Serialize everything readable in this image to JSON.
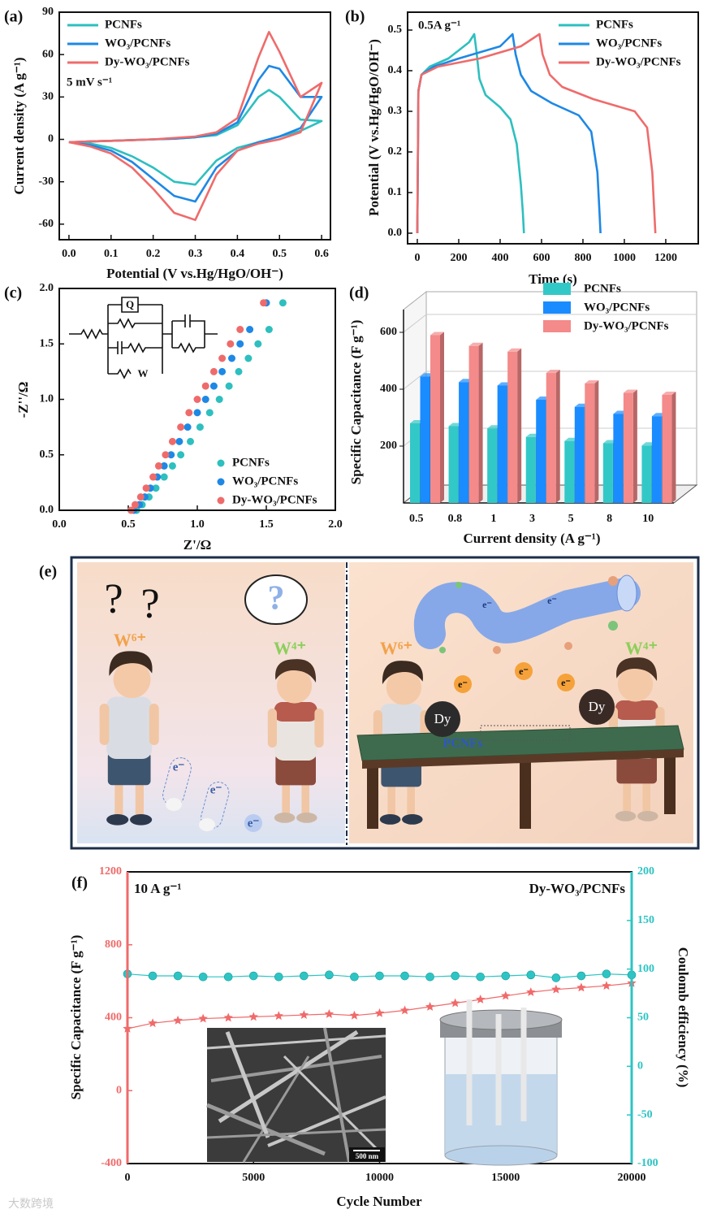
{
  "chart_data": [
    {
      "type": "line",
      "panel": "(a)",
      "xlabel": "Potential (V vs.Hg/HgO/OH⁻)",
      "ylabel": "Current density (A g⁻¹)",
      "annotation": "5 mV s⁻¹",
      "legend": "upper left",
      "x": [
        0,
        0.05,
        0.1,
        0.15,
        0.2,
        0.25,
        0.3,
        0.35,
        0.4,
        0.45,
        0.475,
        0.5,
        0.55,
        0.6,
        0.55,
        0.5,
        0.45,
        0.4,
        0.35,
        0.3,
        0.25,
        0.2,
        0.15,
        0.1,
        0.05,
        0
      ],
      "xlim": [
        -0.023,
        0.621
      ],
      "xticks": [
        {
          "value": 0,
          "label": "0.0"
        },
        0.1,
        0.2,
        0.3,
        0.4,
        0.5,
        0.6
      ],
      "ylim": [
        -71,
        90
      ],
      "yticks": [
        -60,
        -30,
        0,
        30,
        60,
        90
      ],
      "series": [
        {
          "name": "PCNFs",
          "color": "#2ebfbf",
          "values": [
            -2,
            -1.5,
            -1,
            -0.5,
            0,
            0.5,
            1.5,
            3,
            10,
            30,
            35,
            30,
            14,
            13,
            6,
            2,
            -2,
            -6,
            -15,
            -32,
            -30,
            -20,
            -12,
            -6,
            -3,
            -2
          ]
        },
        {
          "name": "WO₃/PCNFs",
          "color": "#1e88e5",
          "values": [
            -2,
            -1.5,
            -1,
            -0.5,
            0,
            0.5,
            1.5,
            4,
            12,
            42,
            52,
            50,
            30,
            30,
            8,
            2,
            -2,
            -8,
            -20,
            -44,
            -40,
            -28,
            -16,
            -8,
            -4,
            -2
          ]
        },
        {
          "name": "Dy-WO₃/PCNFs",
          "color": "#ef6b6b",
          "values": [
            -2,
            -1.5,
            -1,
            -0.5,
            0,
            1,
            2,
            5,
            15,
            58,
            76,
            62,
            30,
            40,
            5,
            0,
            -3,
            -8,
            -25,
            -57,
            -52,
            -35,
            -20,
            -10,
            -5,
            -2
          ]
        }
      ]
    },
    {
      "type": "line",
      "panel": "(b)",
      "xlabel": "Time (s)",
      "ylabel": "Potential (V vs.Hg/HgO/OH⁻)",
      "annotation": "0.5A g⁻¹",
      "legend": "upper right",
      "xlim": [
        -47,
        1357
      ],
      "xticks": [
        0,
        200,
        400,
        600,
        800,
        1000,
        1200
      ],
      "ylim": [
        -0.026,
        0.544
      ],
      "yticks": [
        {
          "value": 0,
          "label": "0.0"
        },
        0.1,
        0.2,
        0.3,
        0.4,
        0.5
      ],
      "series": [
        {
          "name": "PCNFs",
          "color": "#2ebfbf",
          "x": [
            0,
            5,
            20,
            60,
            150,
            250,
            275,
            285,
            300,
            330,
            400,
            450,
            480,
            500,
            510,
            515
          ],
          "values": [
            0,
            0.35,
            0.39,
            0.41,
            0.43,
            0.47,
            0.49,
            0.45,
            0.38,
            0.34,
            0.31,
            0.28,
            0.22,
            0.12,
            0.05,
            0
          ]
        },
        {
          "name": "WO₃/PCNFs",
          "color": "#1e88e5",
          "x": [
            0,
            5,
            20,
            80,
            200,
            400,
            460,
            475,
            500,
            550,
            650,
            780,
            840,
            870,
            880,
            885
          ],
          "values": [
            0,
            0.35,
            0.39,
            0.41,
            0.43,
            0.46,
            0.49,
            0.44,
            0.39,
            0.35,
            0.32,
            0.29,
            0.25,
            0.15,
            0.05,
            0
          ]
        },
        {
          "name": "Dy-WO₃/PCNFs",
          "color": "#ef6b6b",
          "x": [
            0,
            5,
            20,
            100,
            300,
            500,
            590,
            605,
            640,
            700,
            850,
            1050,
            1110,
            1135,
            1145,
            1150
          ],
          "values": [
            0,
            0.35,
            0.39,
            0.41,
            0.43,
            0.46,
            0.49,
            0.44,
            0.39,
            0.36,
            0.33,
            0.3,
            0.26,
            0.15,
            0.05,
            0
          ]
        }
      ]
    },
    {
      "type": "scatter",
      "panel": "(c)",
      "xlabel": "Z'/Ω",
      "ylabel": "-Z''/Ω",
      "legend": "lower right",
      "inset_labels": [
        "Q",
        "W"
      ],
      "xlim": [
        0,
        2
      ],
      "xticks": [
        {
          "value": 0,
          "label": "0.0"
        },
        0.5,
        {
          "value": 1,
          "label": "1.0"
        },
        1.5,
        {
          "value": 2,
          "label": "2.0"
        }
      ],
      "ylim": [
        0,
        2
      ],
      "yticks": [
        {
          "value": 0,
          "label": "0.0"
        },
        0.5,
        {
          "value": 1,
          "label": "1.0"
        },
        1.5,
        {
          "value": 2,
          "label": "2.0"
        }
      ],
      "series": [
        {
          "name": "PCNFs",
          "color": "#2ebfbf",
          "x": [
            0.56,
            0.6,
            0.65,
            0.7,
            0.76,
            0.82,
            0.88,
            0.95,
            1.02,
            1.09,
            1.16,
            1.23,
            1.3,
            1.37,
            1.44,
            1.52,
            1.62
          ],
          "values": [
            0,
            0.05,
            0.12,
            0.2,
            0.3,
            0.4,
            0.5,
            0.62,
            0.75,
            0.88,
            1.0,
            1.12,
            1.25,
            1.37,
            1.5,
            1.63,
            1.87
          ]
        },
        {
          "name": "WO₃/PCNFs",
          "color": "#1e88e5",
          "x": [
            0.54,
            0.58,
            0.62,
            0.66,
            0.71,
            0.76,
            0.81,
            0.87,
            0.93,
            1.0,
            1.06,
            1.12,
            1.18,
            1.25,
            1.31,
            1.38,
            1.5
          ],
          "values": [
            0,
            0.05,
            0.12,
            0.2,
            0.3,
            0.4,
            0.5,
            0.62,
            0.75,
            0.88,
            1.0,
            1.12,
            1.25,
            1.37,
            1.5,
            1.63,
            1.87
          ]
        },
        {
          "name": "Dy-WO₃/PCNFs",
          "color": "#ef6b6b",
          "x": [
            0.52,
            0.55,
            0.59,
            0.63,
            0.68,
            0.72,
            0.77,
            0.82,
            0.88,
            0.94,
            1.0,
            1.06,
            1.12,
            1.18,
            1.24,
            1.31,
            1.48
          ],
          "values": [
            0,
            0.05,
            0.12,
            0.2,
            0.3,
            0.4,
            0.5,
            0.62,
            0.75,
            0.88,
            1.0,
            1.12,
            1.25,
            1.37,
            1.5,
            1.63,
            1.87
          ]
        }
      ]
    },
    {
      "type": "bar",
      "panel": "(d)",
      "xlabel": "Current density (A g⁻¹)",
      "ylabel": "Specific Capacitance (F g⁻¹)",
      "legend": "upper right",
      "categories": [
        "0.5",
        "0.8",
        "1",
        "3",
        "5",
        "8",
        "10"
      ],
      "ylim": [
        0,
        680
      ],
      "yticks": [
        200,
        400,
        600
      ],
      "series": [
        {
          "name": "PCNFs",
          "color": "#33c8c8",
          "values": [
            280,
            270,
            262,
            232,
            218,
            210,
            202
          ]
        },
        {
          "name": "WO₃/PCNFs",
          "color": "#1a8cff",
          "values": [
            445,
            425,
            413,
            363,
            338,
            313,
            305
          ]
        },
        {
          "name": "Dy-WO₃/PCNFs",
          "color": "#f48a8a",
          "values": [
            590,
            552,
            532,
            457,
            420,
            387,
            380
          ]
        }
      ]
    },
    {
      "type": "line",
      "panel": "(f)",
      "xlabel": "Cycle Number",
      "ylabel": "Specific Capacitance (F g⁻¹)",
      "y2label": "Coulomb efficiency (%)",
      "annotations": [
        "10 A g⁻¹",
        "Dy-WO₃/PCNFs"
      ],
      "scale_bar": "500 nm",
      "x": [
        0,
        1000,
        2000,
        3000,
        4000,
        5000,
        6000,
        7000,
        8000,
        9000,
        10000,
        11000,
        12000,
        13000,
        14000,
        15000,
        16000,
        17000,
        18000,
        19000,
        20000
      ],
      "xlim": [
        0,
        20000
      ],
      "xticks": [
        0,
        5000,
        10000,
        15000,
        20000
      ],
      "ylim": [
        -400,
        1200
      ],
      "yticks": [
        -400,
        0,
        400,
        800,
        1200
      ],
      "y2lim": [
        -100,
        200
      ],
      "y2ticks": [
        -100,
        -50,
        0,
        50,
        100,
        150,
        200
      ],
      "series": [
        {
          "color": "#f06a6a",
          "marker": "star",
          "values": [
            340,
            370,
            385,
            395,
            400,
            405,
            410,
            415,
            420,
            412,
            425,
            440,
            460,
            480,
            500,
            520,
            540,
            555,
            565,
            575,
            590
          ]
        },
        {
          "color": "#2ec4c4",
          "marker": "circle",
          "axis": "y2",
          "values": [
            95,
            93,
            93,
            92,
            92,
            93,
            92,
            93,
            94,
            92,
            93,
            93,
            92,
            93,
            92,
            93,
            94,
            91,
            93,
            95,
            94
          ]
        }
      ]
    }
  ],
  "illustration": {
    "panel": "(e)",
    "ions": [
      "W⁶⁺",
      "W⁴⁺",
      "W⁶⁺",
      "W⁴⁺"
    ],
    "substrate": "PCNFs",
    "paddles": [
      "Dy",
      "Dy"
    ],
    "electron": "e⁻",
    "question": "?"
  },
  "watermark": "大数跨境"
}
